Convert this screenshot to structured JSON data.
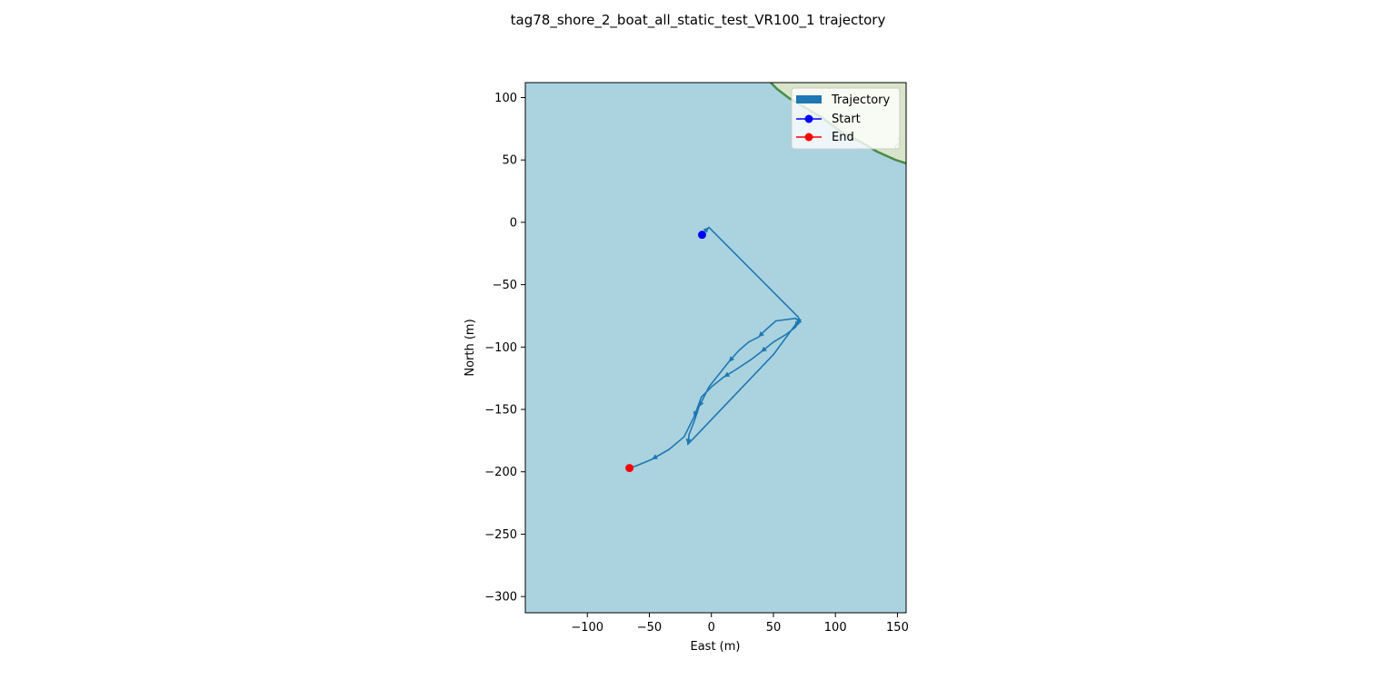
{
  "chart_data": {
    "type": "line",
    "title": "tag78_shore_2_boat_all_static_test_VR100_1 trajectory",
    "xlabel": "East (m)",
    "ylabel": "North (m)",
    "xlim": [
      -150,
      157
    ],
    "ylim": [
      -313,
      112
    ],
    "xticks": [
      -100,
      -50,
      0,
      50,
      100,
      150
    ],
    "yticks": [
      100,
      50,
      0,
      -50,
      -100,
      -150,
      -200,
      -250,
      -300
    ],
    "xtick_labels": [
      "−100",
      "−50",
      "0",
      "50",
      "100",
      "150"
    ],
    "ytick_labels": [
      "100",
      "50",
      "0",
      "−50",
      "−100",
      "−150",
      "−200",
      "−250",
      "−300"
    ],
    "grid": false,
    "legend_position": "upper right",
    "legend": [
      "Trajectory",
      "Start",
      "End"
    ],
    "colors": {
      "trajectory": "#1f77b4",
      "start": "#0000ff",
      "end": "#ff0000",
      "water": "#aad3df",
      "land": "#d9e5c8",
      "shore": "#4a8a4a"
    },
    "series": [
      {
        "name": "Trajectory",
        "x": [
          -8,
          -2,
          70,
          72,
          68,
          52,
          44,
          38,
          30,
          22,
          14,
          6,
          -2,
          -10,
          -14,
          -18,
          -19,
          50,
          70,
          68,
          60,
          50,
          40,
          32,
          20,
          10,
          0,
          -8,
          -14,
          -22,
          -34,
          -48,
          -60,
          -66
        ],
        "y": [
          -10,
          -4,
          -76,
          -80,
          -77,
          -79,
          -86,
          -92,
          -96,
          -103,
          -112,
          -122,
          -132,
          -148,
          -160,
          -170,
          -178,
          -106,
          -79,
          -84,
          -90,
          -96,
          -104,
          -110,
          -118,
          -124,
          -132,
          -140,
          -156,
          -172,
          -182,
          -190,
          -195,
          -197
        ]
      },
      {
        "name": "Start",
        "x": [
          -7.5
        ],
        "y": [
          -10
        ]
      },
      {
        "name": "End",
        "x": [
          -66
        ],
        "y": [
          -197
        ]
      }
    ]
  }
}
